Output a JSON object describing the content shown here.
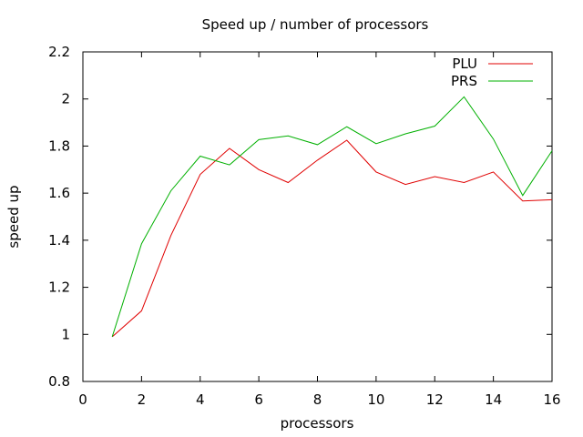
{
  "chart_data": {
    "type": "line",
    "title": "Speed up / number of processors",
    "xlabel": "processors",
    "ylabel": "speed up",
    "xlim": [
      0,
      16
    ],
    "ylim": [
      0.8,
      2.2
    ],
    "xticks": [
      0,
      2,
      4,
      6,
      8,
      10,
      12,
      14,
      16
    ],
    "yticks": [
      0.8,
      1,
      1.2,
      1.4,
      1.6,
      1.8,
      2,
      2.2
    ],
    "ytick_labels": [
      "0.8",
      "1",
      "1.2",
      "1.4",
      "1.6",
      "1.8",
      "2",
      "2.2"
    ],
    "grid": false,
    "legend_position": "top-right",
    "x": [
      1,
      2,
      3,
      4,
      5,
      6,
      7,
      8,
      9,
      10,
      11,
      12,
      13,
      14,
      15,
      16
    ],
    "series": [
      {
        "name": "PLU",
        "color": "#e00000",
        "values": [
          0.99,
          1.1,
          1.42,
          1.68,
          1.79,
          1.7,
          1.645,
          1.74,
          1.825,
          1.69,
          1.637,
          1.67,
          1.645,
          1.69,
          1.567,
          1.572
        ]
      },
      {
        "name": "PRS",
        "color": "#00b000",
        "values": [
          0.99,
          1.385,
          1.61,
          1.757,
          1.72,
          1.827,
          1.843,
          1.806,
          1.882,
          1.81,
          1.852,
          1.885,
          2.009,
          1.83,
          1.59,
          1.78
        ]
      }
    ]
  }
}
